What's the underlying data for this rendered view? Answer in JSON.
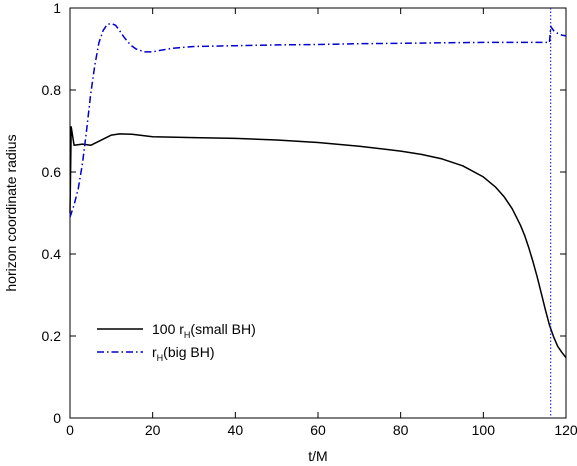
{
  "chart_data": {
    "type": "line",
    "title": "",
    "xlabel": "t/M",
    "ylabel": "horizon coordinate radius",
    "xlim": [
      0,
      120
    ],
    "ylim": [
      0,
      1
    ],
    "x_ticks": [
      "0",
      "20",
      "40",
      "60",
      "80",
      "100",
      "120"
    ],
    "y_ticks": [
      "0",
      "0.2",
      "0.4",
      "0.6",
      "0.8",
      "1"
    ],
    "grid": false,
    "legend_position": "bottom-left",
    "vertical_marker": {
      "x": 116.3,
      "color": "#0000cc",
      "style": "dotted"
    },
    "series": [
      {
        "name_main": "100 r",
        "name_sub": "H",
        "name_suffix": "(small BH)",
        "color": "#000000",
        "style": "solid",
        "x": [
          0,
          0.3,
          1,
          3,
          5,
          8,
          10,
          12,
          15,
          20,
          30,
          40,
          50,
          60,
          70,
          80,
          85,
          90,
          95,
          100,
          103,
          105,
          107,
          109,
          110,
          111,
          112,
          113,
          114,
          115,
          116,
          117,
          118,
          119,
          120
        ],
        "y": [
          0.5,
          0.71,
          0.665,
          0.668,
          0.665,
          0.68,
          0.69,
          0.693,
          0.692,
          0.686,
          0.684,
          0.682,
          0.678,
          0.672,
          0.663,
          0.651,
          0.643,
          0.632,
          0.615,
          0.588,
          0.563,
          0.54,
          0.51,
          0.47,
          0.445,
          0.415,
          0.382,
          0.345,
          0.305,
          0.265,
          0.226,
          0.198,
          0.175,
          0.16,
          0.147
        ]
      },
      {
        "name_main": "r",
        "name_sub": "H",
        "name_suffix": "(big BH)",
        "color": "#0000cc",
        "style": "dash-dot",
        "x": [
          0,
          1,
          2,
          3,
          4,
          5,
          6,
          7,
          8,
          9,
          10,
          11,
          12,
          13,
          14,
          15,
          16,
          18,
          20,
          22,
          25,
          30,
          40,
          50,
          60,
          70,
          80,
          90,
          100,
          110,
          116,
          116.3,
          117,
          118,
          119,
          120
        ],
        "y": [
          0.49,
          0.52,
          0.56,
          0.62,
          0.7,
          0.79,
          0.86,
          0.915,
          0.945,
          0.96,
          0.962,
          0.958,
          0.945,
          0.93,
          0.917,
          0.907,
          0.9,
          0.893,
          0.893,
          0.897,
          0.902,
          0.906,
          0.908,
          0.91,
          0.911,
          0.913,
          0.914,
          0.915,
          0.916,
          0.916,
          0.916,
          0.955,
          0.945,
          0.938,
          0.934,
          0.932
        ]
      }
    ]
  }
}
